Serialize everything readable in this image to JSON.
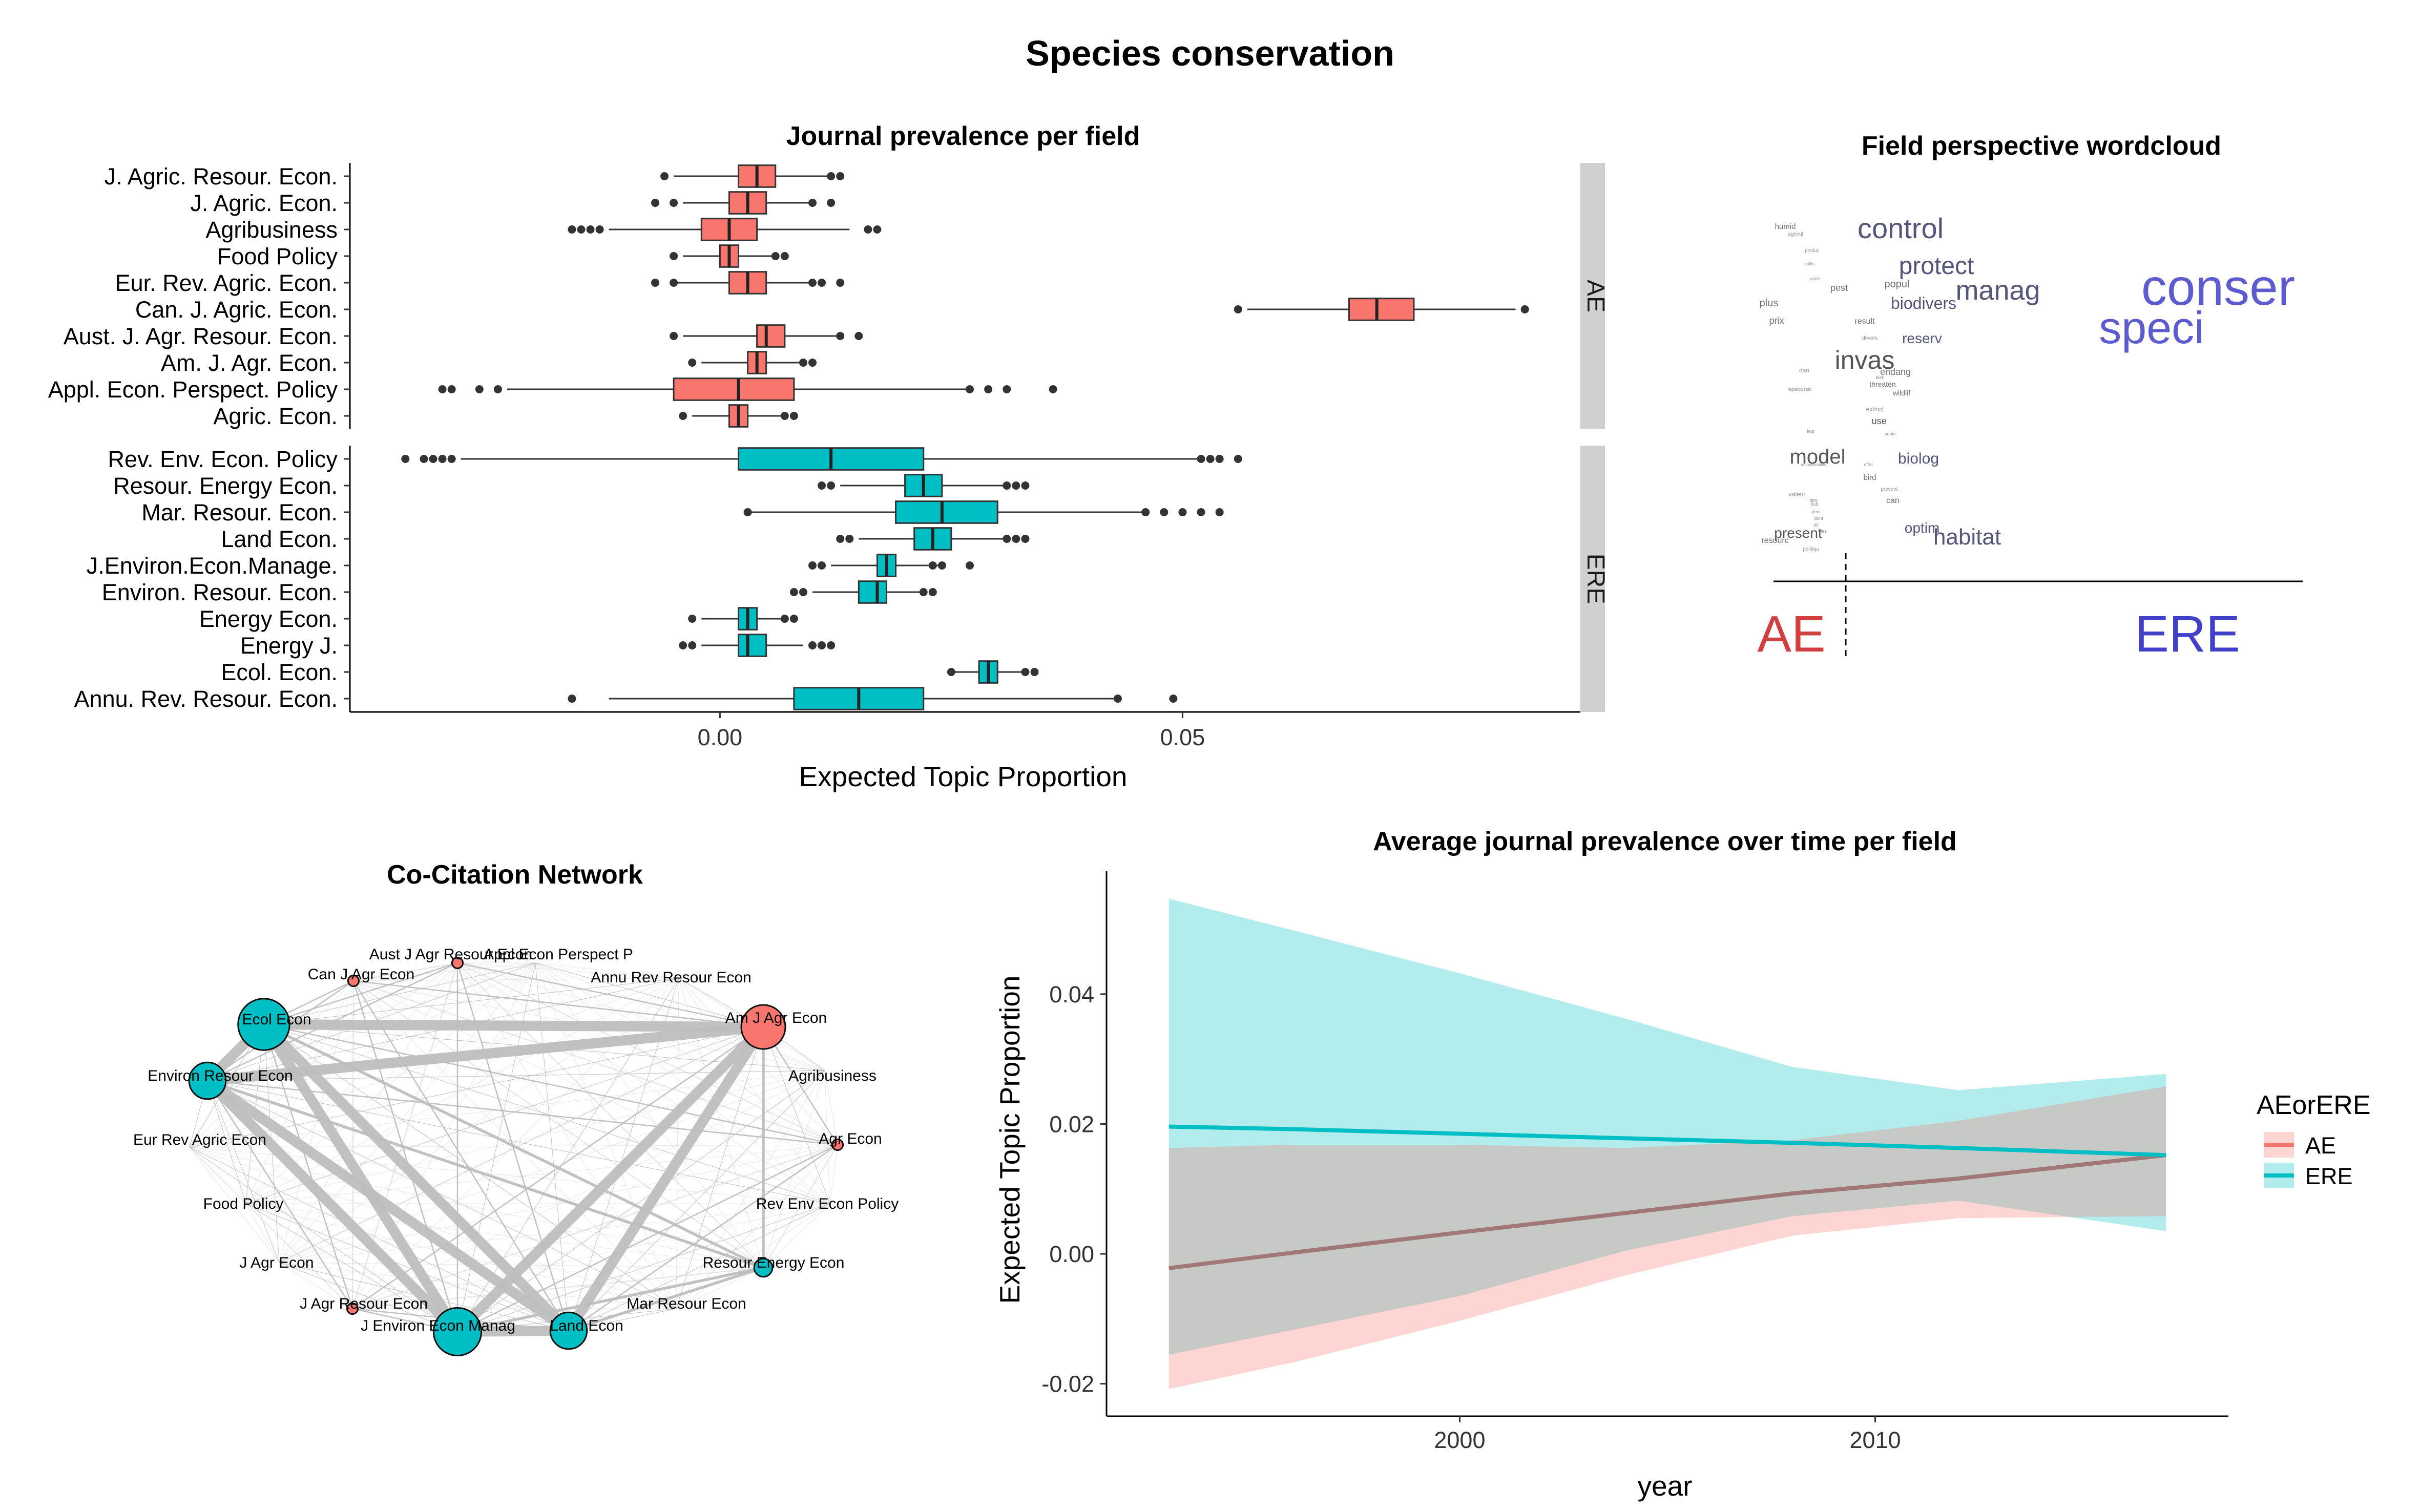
{
  "page": {
    "title": "Species conservation"
  },
  "chart_data": [
    {
      "type": "boxplot",
      "title": "Journal prevalence per field",
      "xlabel": "Expected Topic Proportion",
      "ylabel": "",
      "xlim": [
        -0.04,
        0.093
      ],
      "xticks": [
        0.0,
        0.05
      ],
      "xtick_labels": [
        "0.00",
        "0.05"
      ],
      "panels": [
        {
          "name": "AE",
          "color": "#F8766D",
          "journals": [
            {
              "label": "J. Agric. Resour. Econ.",
              "min": -0.005,
              "q1": 0.002,
              "median": 0.004,
              "q3": 0.006,
              "max": 0.012,
              "outliers": [
                -0.006,
                0.012,
                0.013
              ]
            },
            {
              "label": "J. Agric. Econ.",
              "min": -0.004,
              "q1": 0.001,
              "median": 0.003,
              "q3": 0.005,
              "max": 0.01,
              "outliers": [
                -0.007,
                -0.005,
                0.01,
                0.012
              ]
            },
            {
              "label": "Agribusiness",
              "min": -0.012,
              "q1": -0.002,
              "median": 0.001,
              "q3": 0.004,
              "max": 0.014,
              "outliers": [
                -0.016,
                -0.015,
                -0.014,
                -0.013,
                0.016,
                0.017
              ]
            },
            {
              "label": "Food Policy",
              "min": -0.004,
              "q1": 0.0,
              "median": 0.001,
              "q3": 0.002,
              "max": 0.006,
              "outliers": [
                -0.005,
                0.006,
                0.007
              ]
            },
            {
              "label": "Eur. Rev. Agric. Econ.",
              "min": -0.005,
              "q1": 0.001,
              "median": 0.003,
              "q3": 0.005,
              "max": 0.01,
              "outliers": [
                -0.007,
                -0.005,
                0.01,
                0.011,
                0.013
              ]
            },
            {
              "label": "Can. J. Agric. Econ.",
              "min": 0.057,
              "q1": 0.068,
              "median": 0.071,
              "q3": 0.075,
              "max": 0.086,
              "outliers": [
                0.056,
                0.087
              ]
            },
            {
              "label": "Aust. J. Agr. Resour. Econ.",
              "min": -0.004,
              "q1": 0.004,
              "median": 0.005,
              "q3": 0.007,
              "max": 0.013,
              "outliers": [
                -0.005,
                0.013,
                0.015
              ]
            },
            {
              "label": "Am. J. Agr. Econ.",
              "min": -0.002,
              "q1": 0.003,
              "median": 0.004,
              "q3": 0.005,
              "max": 0.009,
              "outliers": [
                -0.003,
                0.009,
                0.01
              ]
            },
            {
              "label": "Appl. Econ. Perspect. Policy",
              "min": -0.023,
              "q1": -0.005,
              "median": 0.002,
              "q3": 0.008,
              "max": 0.027,
              "outliers": [
                -0.03,
                -0.029,
                -0.026,
                -0.024,
                0.027,
                0.029,
                0.031,
                0.036
              ]
            },
            {
              "label": "Agric. Econ.",
              "min": -0.003,
              "q1": 0.001,
              "median": 0.002,
              "q3": 0.003,
              "max": 0.007,
              "outliers": [
                -0.004,
                0.007,
                0.008
              ]
            }
          ]
        },
        {
          "name": "ERE",
          "color": "#00BFC4",
          "journals": [
            {
              "label": "Rev. Env. Econ. Policy",
              "min": -0.028,
              "q1": 0.002,
              "median": 0.012,
              "q3": 0.022,
              "max": 0.052,
              "outliers": [
                -0.034,
                -0.032,
                -0.031,
                -0.03,
                -0.029,
                0.052,
                0.053,
                0.054,
                0.056
              ]
            },
            {
              "label": "Resour. Energy Econ.",
              "min": 0.013,
              "q1": 0.02,
              "median": 0.022,
              "q3": 0.024,
              "max": 0.031,
              "outliers": [
                0.011,
                0.012,
                0.031,
                0.032,
                0.033
              ]
            },
            {
              "label": "Mar. Resour. Econ.",
              "min": 0.003,
              "q1": 0.019,
              "median": 0.024,
              "q3": 0.03,
              "max": 0.046,
              "outliers": [
                0.003,
                0.046,
                0.048,
                0.05,
                0.052,
                0.054
              ]
            },
            {
              "label": "Land Econ.",
              "min": 0.015,
              "q1": 0.021,
              "median": 0.023,
              "q3": 0.025,
              "max": 0.031,
              "outliers": [
                0.013,
                0.014,
                0.031,
                0.032,
                0.033
              ]
            },
            {
              "label": "J.Environ.Econ.Manage.",
              "min": 0.012,
              "q1": 0.017,
              "median": 0.018,
              "q3": 0.019,
              "max": 0.024,
              "outliers": [
                0.01,
                0.011,
                0.023,
                0.024,
                0.027
              ]
            },
            {
              "label": "Environ. Resour. Econ.",
              "min": 0.01,
              "q1": 0.015,
              "median": 0.017,
              "q3": 0.018,
              "max": 0.022,
              "outliers": [
                0.008,
                0.009,
                0.022,
                0.023
              ]
            },
            {
              "label": "Energy Econ.",
              "min": -0.002,
              "q1": 0.002,
              "median": 0.003,
              "q3": 0.004,
              "max": 0.007,
              "outliers": [
                -0.003,
                0.007,
                0.008
              ]
            },
            {
              "label": "Energy J.",
              "min": -0.002,
              "q1": 0.002,
              "median": 0.003,
              "q3": 0.005,
              "max": 0.009,
              "outliers": [
                -0.004,
                -0.003,
                0.01,
                0.011,
                0.012
              ]
            },
            {
              "label": "Ecol. Econ.",
              "min": 0.025,
              "q1": 0.028,
              "median": 0.029,
              "q3": 0.03,
              "max": 0.033,
              "outliers": [
                0.025,
                0.033,
                0.034
              ]
            },
            {
              "label": "Annu. Rev. Resour. Econ.",
              "min": -0.012,
              "q1": 0.008,
              "median": 0.015,
              "q3": 0.022,
              "max": 0.043,
              "outliers": [
                -0.016,
                0.043,
                0.049
              ]
            }
          ]
        }
      ]
    },
    {
      "type": "wordcloud",
      "title": "Field perspective wordcloud",
      "axis_labels": [
        "AE",
        "ERE"
      ],
      "axis_label_colors": [
        "#D04040",
        "#4040C8"
      ],
      "words": [
        {
          "text": "conser",
          "color": "#5C5CD0"
        },
        {
          "text": "speci",
          "color": "#5C5CD0"
        },
        {
          "text": "control",
          "color": "#55557A"
        },
        {
          "text": "protect",
          "color": "#55557A"
        },
        {
          "text": "manag",
          "color": "#55557A"
        },
        {
          "text": "biodivers",
          "color": "#55557A"
        },
        {
          "text": "invas",
          "color": "#555555"
        },
        {
          "text": "habitat",
          "color": "#55557A"
        },
        {
          "text": "model",
          "color": "#555555"
        },
        {
          "text": "biolog",
          "color": "#55557A"
        },
        {
          "text": "optim",
          "color": "#55557A"
        },
        {
          "text": "present",
          "color": "#555555"
        },
        {
          "text": "reserv",
          "color": "#55557A"
        },
        {
          "text": "humid",
          "color": "#707070"
        },
        {
          "text": "agricul",
          "color": "#909090"
        },
        {
          "text": "pest",
          "color": "#707070"
        },
        {
          "text": "popul",
          "color": "#707070"
        },
        {
          "text": "plus",
          "color": "#707070"
        },
        {
          "text": "prix",
          "color": "#707070"
        },
        {
          "text": "result",
          "color": "#707070"
        },
        {
          "text": "endang",
          "color": "#707070"
        },
        {
          "text": "threaten",
          "color": "#707070"
        },
        {
          "text": "wildlif",
          "color": "#707070"
        },
        {
          "text": "use",
          "color": "#555555"
        },
        {
          "text": "extinct",
          "color": "#909090"
        },
        {
          "text": "bird",
          "color": "#707070"
        },
        {
          "text": "can",
          "color": "#707070"
        },
        {
          "text": "resourc",
          "color": "#707070"
        },
        {
          "text": "valeur",
          "color": "#909090"
        },
        {
          "text": "fish",
          "color": "#909090"
        },
        {
          "text": "politiqu",
          "color": "#909090"
        },
        {
          "text": "prevent",
          "color": "#909090"
        },
        {
          "text": "drivers",
          "color": "#909090"
        },
        {
          "text": "dan",
          "color": "#909090"
        },
        {
          "text": "repercussio",
          "color": "#909090"
        },
        {
          "text": "zone",
          "color": "#909090"
        },
        {
          "text": "utilis",
          "color": "#909090"
        },
        {
          "text": "produc",
          "color": "#909090"
        },
        {
          "text": "bien",
          "color": "#909090"
        },
        {
          "text": "peut",
          "color": "#909090"
        },
        {
          "text": "dont",
          "color": "#909090"
        },
        {
          "text": "dtre",
          "color": "#909090"
        },
        {
          "text": "effet",
          "color": "#909090"
        },
        {
          "text": "seule",
          "color": "#909090"
        },
        {
          "text": "renouvelables",
          "color": "#909090"
        },
        {
          "text": "leur",
          "color": "#909090"
        },
        {
          "text": "dit",
          "color": "#909090"
        },
        {
          "text": "les",
          "color": "#909090"
        }
      ]
    },
    {
      "type": "network",
      "title": "Co-Citation Network",
      "colors": {
        "AE": "#F8766D",
        "ERE": "#00BFC4",
        "edge": "#BEBEBE"
      },
      "nodes": [
        {
          "label": "Aust J Agr Resour Econ",
          "field": "AE",
          "size": 1
        },
        {
          "label": "Appl Econ Perspect P",
          "field": "AE",
          "size": 0
        },
        {
          "label": "Annu Rev Resour Econ",
          "field": "ERE",
          "size": 0
        },
        {
          "label": "Am J Agr Econ",
          "field": "AE",
          "size": 10
        },
        {
          "label": "Agribusiness",
          "field": "AE",
          "size": 0
        },
        {
          "label": "Agr Econ",
          "field": "AE",
          "size": 1
        },
        {
          "label": "Rev Env Econ Policy",
          "field": "ERE",
          "size": 0
        },
        {
          "label": "Resour Energy Econ",
          "field": "ERE",
          "size": 3
        },
        {
          "label": "Mar Resour Econ",
          "field": "ERE",
          "size": 0
        },
        {
          "label": "Land Econ",
          "field": "ERE",
          "size": 8
        },
        {
          "label": "J Environ Econ Manag",
          "field": "ERE",
          "size": 11
        },
        {
          "label": "J Agr Resour Econ",
          "field": "AE",
          "size": 1
        },
        {
          "label": "J Agr Econ",
          "field": "AE",
          "size": 0
        },
        {
          "label": "Food Policy",
          "field": "AE",
          "size": 0
        },
        {
          "label": "Eur Rev Agric Econ",
          "field": "AE",
          "size": 0
        },
        {
          "label": "Environ Resour Econ",
          "field": "ERE",
          "size": 8
        },
        {
          "label": "Ecol Econ",
          "field": "ERE",
          "size": 12
        },
        {
          "label": "Can J Agr Econ",
          "field": "AE",
          "size": 1
        }
      ]
    },
    {
      "type": "line",
      "title": "Average journal prevalence over time per field",
      "xlabel": "year",
      "ylabel": "Expected Topic Proportion",
      "xlim": [
        1991.5,
        2018.5
      ],
      "ylim": [
        -0.025,
        0.059
      ],
      "xticks": [
        2000,
        2010
      ],
      "yticks": [
        -0.02,
        0.0,
        0.02,
        0.04
      ],
      "ytick_labels": [
        "-0.02",
        "0.00",
        "0.02",
        "0.04"
      ],
      "legend": {
        "title": "AEorERE",
        "position": "right"
      },
      "x": [
        1993,
        1996,
        2000,
        2004,
        2008,
        2012,
        2017
      ],
      "series": [
        {
          "name": "AE",
          "color": "#F8766D",
          "values": [
            -0.0022,
            0.0002,
            0.0033,
            0.0063,
            0.0093,
            0.0116,
            0.0152
          ],
          "lower": [
            -0.0208,
            -0.0167,
            -0.0103,
            -0.0033,
            0.0028,
            0.0055,
            0.0058
          ],
          "upper": [
            0.0163,
            0.0168,
            0.0168,
            0.0163,
            0.0175,
            0.0205,
            0.0258
          ]
        },
        {
          "name": "ERE",
          "color": "#00BFC4",
          "values": [
            0.0196,
            0.0192,
            0.0185,
            0.0178,
            0.0171,
            0.0163,
            0.0152
          ],
          "lower": [
            -0.0155,
            -0.0117,
            -0.0065,
            0.0005,
            0.0058,
            0.0082,
            0.0035
          ],
          "upper": [
            0.0547,
            0.0498,
            0.0432,
            0.0362,
            0.0288,
            0.0252,
            0.0277
          ]
        }
      ]
    }
  ]
}
